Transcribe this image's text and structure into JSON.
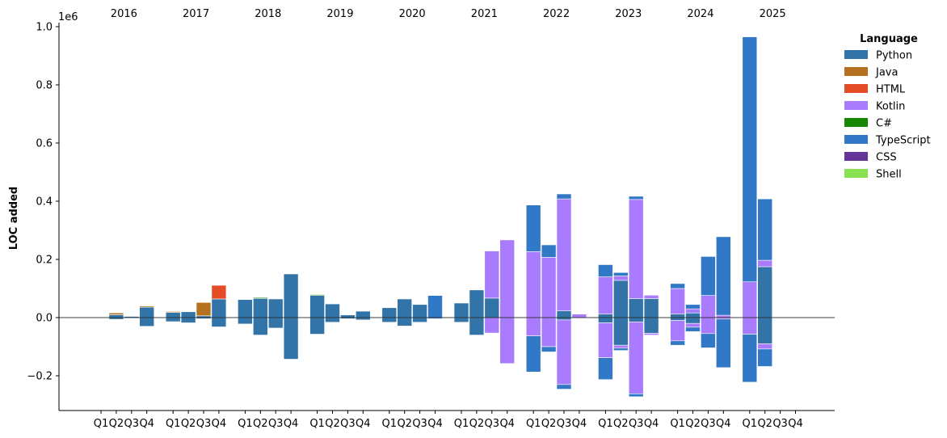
{
  "chart_data": {
    "type": "bar",
    "ylabel": "LOC added",
    "y_offset_label": "1e6",
    "ylim": [
      -0.32,
      1.02
    ],
    "yticks": [
      -0.2,
      0.0,
      0.2,
      0.4,
      0.6,
      0.8,
      1.0
    ],
    "ytick_labels": [
      "−0.2",
      "0.0",
      "0.2",
      "0.4",
      "0.6",
      "0.8",
      "1.0"
    ],
    "years": [
      "2016",
      "2017",
      "2018",
      "2019",
      "2020",
      "2021",
      "2022",
      "2023",
      "2024",
      "2025"
    ],
    "quarters": [
      "Q1",
      "Q2",
      "Q3",
      "Q4"
    ],
    "legend": {
      "title": "Language",
      "position": "top-right-outside",
      "entries": [
        {
          "name": "Python",
          "color": "#3274a8"
        },
        {
          "name": "Java",
          "color": "#b5711f"
        },
        {
          "name": "HTML",
          "color": "#e34c26"
        },
        {
          "name": "Kotlin",
          "color": "#a97bff"
        },
        {
          "name": "C#",
          "color": "#178600"
        },
        {
          "name": "TypeScript",
          "color": "#3178c6"
        },
        {
          "name": "CSS",
          "color": "#663399"
        },
        {
          "name": "Shell",
          "color": "#89e051"
        }
      ]
    },
    "bars": [
      {
        "year": "2016",
        "quarter": "Q2",
        "segments": [
          {
            "lang": "Python",
            "from": 0,
            "to": 0.01
          },
          {
            "lang": "Java",
            "from": 0.01,
            "to": 0.016
          }
        ],
        "removed": -0.006
      },
      {
        "year": "2016",
        "quarter": "Q3",
        "segments": [
          {
            "lang": "Python",
            "from": 0,
            "to": 0.004
          }
        ],
        "removed": -0.002
      },
      {
        "year": "2016",
        "quarter": "Q4",
        "segments": [
          {
            "lang": "Python",
            "from": 0,
            "to": 0.036
          },
          {
            "lang": "Java",
            "from": 0.036,
            "to": 0.04
          }
        ],
        "removed": -0.03
      },
      {
        "year": "2017",
        "quarter": "Q1",
        "segments": [
          {
            "lang": "Python",
            "from": 0,
            "to": 0.018
          },
          {
            "lang": "Java",
            "from": 0.018,
            "to": 0.021
          }
        ],
        "removed": -0.014
      },
      {
        "year": "2017",
        "quarter": "Q2",
        "segments": [
          {
            "lang": "Python",
            "from": 0,
            "to": 0.02
          }
        ],
        "removed": -0.018
      },
      {
        "year": "2017",
        "quarter": "Q3",
        "segments": [
          {
            "lang": "Python",
            "from": 0,
            "to": 0.006
          },
          {
            "lang": "Java",
            "from": 0.006,
            "to": 0.052
          }
        ],
        "removed": -0.004
      },
      {
        "year": "2017",
        "quarter": "Q4",
        "segments": [
          {
            "lang": "Python",
            "from": 0,
            "to": 0.064
          },
          {
            "lang": "HTML",
            "from": 0.064,
            "to": 0.111
          }
        ],
        "removed": -0.032
      },
      {
        "year": "2018",
        "quarter": "Q1",
        "segments": [
          {
            "lang": "Python",
            "from": 0,
            "to": 0.062
          }
        ],
        "removed": -0.022
      },
      {
        "year": "2018",
        "quarter": "Q2",
        "segments": [
          {
            "lang": "Python",
            "from": 0,
            "to": 0.066
          },
          {
            "lang": "C#",
            "from": 0.066,
            "to": 0.069
          }
        ],
        "removed": -0.06
      },
      {
        "year": "2018",
        "quarter": "Q3",
        "segments": [
          {
            "lang": "Python",
            "from": 0,
            "to": 0.064
          }
        ],
        "removed": -0.036
      },
      {
        "year": "2018",
        "quarter": "Q4",
        "segments": [
          {
            "lang": "Python",
            "from": 0,
            "to": 0.15
          }
        ],
        "removed": -0.143
      },
      {
        "year": "2019",
        "quarter": "Q1",
        "segments": [
          {
            "lang": "Python",
            "from": 0,
            "to": 0.076
          },
          {
            "lang": "C#",
            "from": 0.076,
            "to": 0.079
          }
        ],
        "removed": -0.057
      },
      {
        "year": "2019",
        "quarter": "Q2",
        "segments": [
          {
            "lang": "Python",
            "from": 0,
            "to": 0.047
          }
        ],
        "removed": -0.016
      },
      {
        "year": "2019",
        "quarter": "Q3",
        "segments": [
          {
            "lang": "Python",
            "from": 0,
            "to": 0.009
          }
        ],
        "removed": -0.004
      },
      {
        "year": "2019",
        "quarter": "Q4",
        "segments": [
          {
            "lang": "Python",
            "from": 0,
            "to": 0.022
          }
        ],
        "removed": -0.008
      },
      {
        "year": "2020",
        "quarter": "Q1",
        "segments": [
          {
            "lang": "Python",
            "from": 0,
            "to": 0.034
          }
        ],
        "removed": -0.016
      },
      {
        "year": "2020",
        "quarter": "Q2",
        "segments": [
          {
            "lang": "Python",
            "from": 0,
            "to": 0.064
          }
        ],
        "removed": -0.029
      },
      {
        "year": "2020",
        "quarter": "Q3",
        "segments": [
          {
            "lang": "Python",
            "from": 0,
            "to": 0.045
          }
        ],
        "removed": -0.016
      },
      {
        "year": "2020",
        "quarter": "Q4",
        "segments": [
          {
            "lang": "TypeScript",
            "from": 0,
            "to": 0.076
          }
        ],
        "removed": -0.004
      },
      {
        "year": "2021",
        "quarter": "Q1",
        "segments": [
          {
            "lang": "Python",
            "from": 0,
            "to": 0.05
          }
        ],
        "removed": -0.016
      },
      {
        "year": "2021",
        "quarter": "Q2",
        "segments": [
          {
            "lang": "Python",
            "from": 0,
            "to": 0.095
          }
        ],
        "removed": -0.06
      },
      {
        "year": "2021",
        "quarter": "Q3",
        "segments": [
          {
            "lang": "Python",
            "from": 0,
            "to": 0.067
          },
          {
            "lang": "Kotlin",
            "from": 0.067,
            "to": 0.229
          }
        ],
        "removed_segments": [
          {
            "lang": "Kotlin",
            "from": 0,
            "to": -0.053
          }
        ]
      },
      {
        "year": "2021",
        "quarter": "Q4",
        "segments": [
          {
            "lang": "Kotlin",
            "from": 0,
            "to": 0.267
          }
        ],
        "removed_segments": [
          {
            "lang": "Kotlin",
            "from": 0,
            "to": -0.158
          }
        ]
      },
      {
        "year": "2022",
        "quarter": "Q1",
        "segments": [
          {
            "lang": "Kotlin",
            "from": 0,
            "to": 0.227
          },
          {
            "lang": "TypeScript",
            "from": 0.227,
            "to": 0.387
          }
        ],
        "removed_segments": [
          {
            "lang": "Kotlin",
            "from": 0,
            "to": -0.063
          },
          {
            "lang": "TypeScript",
            "from": -0.063,
            "to": -0.187
          }
        ]
      },
      {
        "year": "2022",
        "quarter": "Q2",
        "segments": [
          {
            "lang": "Kotlin",
            "from": 0,
            "to": 0.207
          },
          {
            "lang": "TypeScript",
            "from": 0.207,
            "to": 0.25
          }
        ],
        "removed_segments": [
          {
            "lang": "Kotlin",
            "from": 0,
            "to": -0.1
          },
          {
            "lang": "TypeScript",
            "from": -0.1,
            "to": -0.118
          }
        ]
      },
      {
        "year": "2022",
        "quarter": "Q3",
        "segments": [
          {
            "lang": "Python",
            "from": 0,
            "to": 0.023
          },
          {
            "lang": "Kotlin",
            "from": 0.023,
            "to": 0.408
          },
          {
            "lang": "TypeScript",
            "from": 0.408,
            "to": 0.425
          }
        ],
        "removed_segments": [
          {
            "lang": "Python",
            "from": 0,
            "to": -0.008
          },
          {
            "lang": "Kotlin",
            "from": -0.008,
            "to": -0.23
          },
          {
            "lang": "TypeScript",
            "from": -0.23,
            "to": -0.246
          }
        ]
      },
      {
        "year": "2022",
        "quarter": "Q4",
        "segments": [
          {
            "lang": "Kotlin",
            "from": 0,
            "to": 0.012
          }
        ],
        "removed": -0.002
      },
      {
        "year": "2023",
        "quarter": "Q1",
        "segments": [
          {
            "lang": "Python",
            "from": 0,
            "to": 0.012
          },
          {
            "lang": "Kotlin",
            "from": 0.012,
            "to": 0.14
          },
          {
            "lang": "TypeScript",
            "from": 0.14,
            "to": 0.182
          }
        ],
        "removed_segments": [
          {
            "lang": "Python",
            "from": 0,
            "to": -0.018
          },
          {
            "lang": "Kotlin",
            "from": -0.018,
            "to": -0.138
          },
          {
            "lang": "TypeScript",
            "from": -0.138,
            "to": -0.213
          }
        ]
      },
      {
        "year": "2023",
        "quarter": "Q2",
        "segments": [
          {
            "lang": "Python",
            "from": 0,
            "to": 0.128
          },
          {
            "lang": "Kotlin",
            "from": 0.128,
            "to": 0.143
          },
          {
            "lang": "TypeScript",
            "from": 0.143,
            "to": 0.155
          }
        ],
        "removed_segments": [
          {
            "lang": "Python",
            "from": 0,
            "to": -0.095
          },
          {
            "lang": "Kotlin",
            "from": -0.095,
            "to": -0.105
          },
          {
            "lang": "TypeScript",
            "from": -0.105,
            "to": -0.113
          }
        ]
      },
      {
        "year": "2023",
        "quarter": "Q3",
        "segments": [
          {
            "lang": "Python",
            "from": 0,
            "to": 0.065
          },
          {
            "lang": "Kotlin",
            "from": 0.065,
            "to": 0.406
          },
          {
            "lang": "TypeScript",
            "from": 0.406,
            "to": 0.417
          }
        ],
        "removed_segments": [
          {
            "lang": "Python",
            "from": 0,
            "to": -0.015
          },
          {
            "lang": "Kotlin",
            "from": -0.015,
            "to": -0.262
          },
          {
            "lang": "TypeScript",
            "from": -0.262,
            "to": -0.272
          }
        ]
      },
      {
        "year": "2023",
        "quarter": "Q4",
        "segments": [
          {
            "lang": "Python",
            "from": 0,
            "to": 0.065
          },
          {
            "lang": "Kotlin",
            "from": 0.065,
            "to": 0.077
          }
        ],
        "removed_segments": [
          {
            "lang": "Python",
            "from": 0,
            "to": -0.054
          },
          {
            "lang": "Kotlin",
            "from": -0.054,
            "to": -0.06
          }
        ]
      },
      {
        "year": "2024",
        "quarter": "Q1",
        "segments": [
          {
            "lang": "Python",
            "from": 0,
            "to": 0.012
          },
          {
            "lang": "Kotlin",
            "from": 0.012,
            "to": 0.1
          },
          {
            "lang": "TypeScript",
            "from": 0.1,
            "to": 0.117
          }
        ],
        "removed_segments": [
          {
            "lang": "Python",
            "from": 0,
            "to": -0.01
          },
          {
            "lang": "Kotlin",
            "from": -0.01,
            "to": -0.08
          },
          {
            "lang": "TypeScript",
            "from": -0.08,
            "to": -0.095
          }
        ]
      },
      {
        "year": "2024",
        "quarter": "Q2",
        "segments": [
          {
            "lang": "Python",
            "from": 0,
            "to": 0.016
          },
          {
            "lang": "Kotlin",
            "from": 0.016,
            "to": 0.03
          },
          {
            "lang": "TypeScript",
            "from": 0.03,
            "to": 0.045
          }
        ],
        "removed_segments": [
          {
            "lang": "Python",
            "from": 0,
            "to": -0.02
          },
          {
            "lang": "Kotlin",
            "from": -0.02,
            "to": -0.033
          },
          {
            "lang": "TypeScript",
            "from": -0.033,
            "to": -0.048
          }
        ]
      },
      {
        "year": "2024",
        "quarter": "Q3",
        "segments": [
          {
            "lang": "Kotlin",
            "from": 0,
            "to": 0.076
          },
          {
            "lang": "TypeScript",
            "from": 0.076,
            "to": 0.21
          }
        ],
        "removed_segments": [
          {
            "lang": "Kotlin",
            "from": 0,
            "to": -0.055
          },
          {
            "lang": "TypeScript",
            "from": -0.055,
            "to": -0.104
          }
        ]
      },
      {
        "year": "2024",
        "quarter": "Q4",
        "segments": [
          {
            "lang": "Kotlin",
            "from": 0,
            "to": 0.008
          },
          {
            "lang": "TypeScript",
            "from": 0.008,
            "to": 0.278
          }
        ],
        "removed_segments": [
          {
            "lang": "Kotlin",
            "from": 0,
            "to": -0.005
          },
          {
            "lang": "TypeScript",
            "from": -0.005,
            "to": -0.172
          }
        ]
      },
      {
        "year": "2025",
        "quarter": "Q1",
        "segments": [
          {
            "lang": "Kotlin",
            "from": 0,
            "to": 0.123
          },
          {
            "lang": "TypeScript",
            "from": 0.123,
            "to": 0.965
          }
        ],
        "removed_segments": [
          {
            "lang": "Kotlin",
            "from": 0,
            "to": -0.057
          },
          {
            "lang": "TypeScript",
            "from": -0.057,
            "to": -0.222
          }
        ]
      },
      {
        "year": "2025",
        "quarter": "Q2",
        "segments": [
          {
            "lang": "Python",
            "from": 0,
            "to": 0.175
          },
          {
            "lang": "Kotlin",
            "from": 0.175,
            "to": 0.197
          },
          {
            "lang": "TypeScript",
            "from": 0.197,
            "to": 0.408
          }
        ],
        "removed_segments": [
          {
            "lang": "Python",
            "from": 0,
            "to": -0.09
          },
          {
            "lang": "Kotlin",
            "from": -0.09,
            "to": -0.108
          },
          {
            "lang": "TypeScript",
            "from": -0.108,
            "to": -0.168
          }
        ]
      }
    ]
  }
}
